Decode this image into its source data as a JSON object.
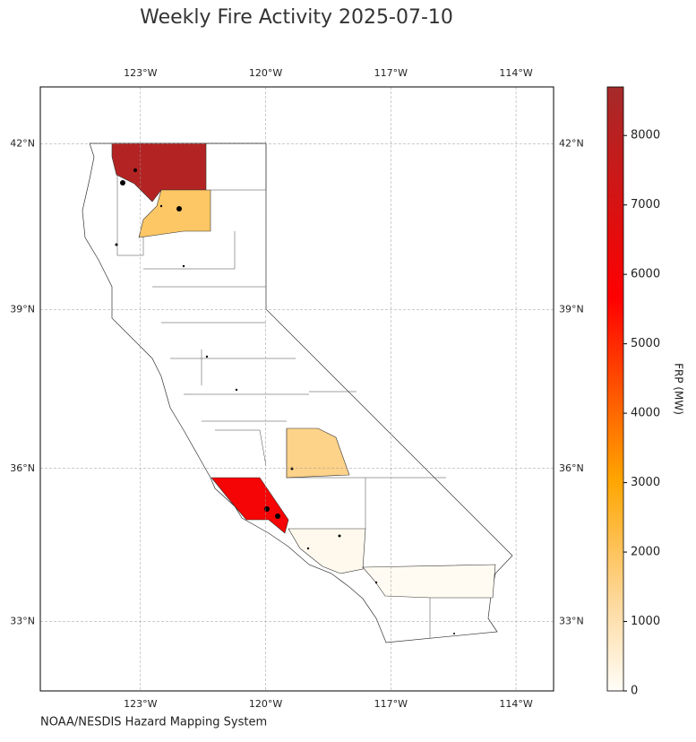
{
  "chart_data": {
    "type": "choropleth",
    "title": "Weekly Fire Activity 2025-07-10",
    "source": "NOAA/NESDIS Hazard Mapping System",
    "colorbar_label": "FRP (MW)",
    "xlim": [
      -125.4,
      -113.1
    ],
    "ylim": [
      31.6,
      43.0
    ],
    "xticks": [
      {
        "value": -123,
        "label": "123°W"
      },
      {
        "value": -120,
        "label": "120°W"
      },
      {
        "value": -117,
        "label": "117°W"
      },
      {
        "value": -114,
        "label": "114°W"
      }
    ],
    "yticks": [
      {
        "value": 33,
        "label": "33°N"
      },
      {
        "value": 36,
        "label": "36°N"
      },
      {
        "value": 39,
        "label": "39°N"
      },
      {
        "value": 42,
        "label": "42°N"
      }
    ],
    "grid": true,
    "clim": [
      0,
      8700
    ],
    "cticks": [
      0,
      1000,
      2000,
      3000,
      4000,
      5000,
      6000,
      7000,
      8000
    ],
    "values": [
      8200,
      1900,
      1500,
      6000,
      150,
      80
    ]
  }
}
